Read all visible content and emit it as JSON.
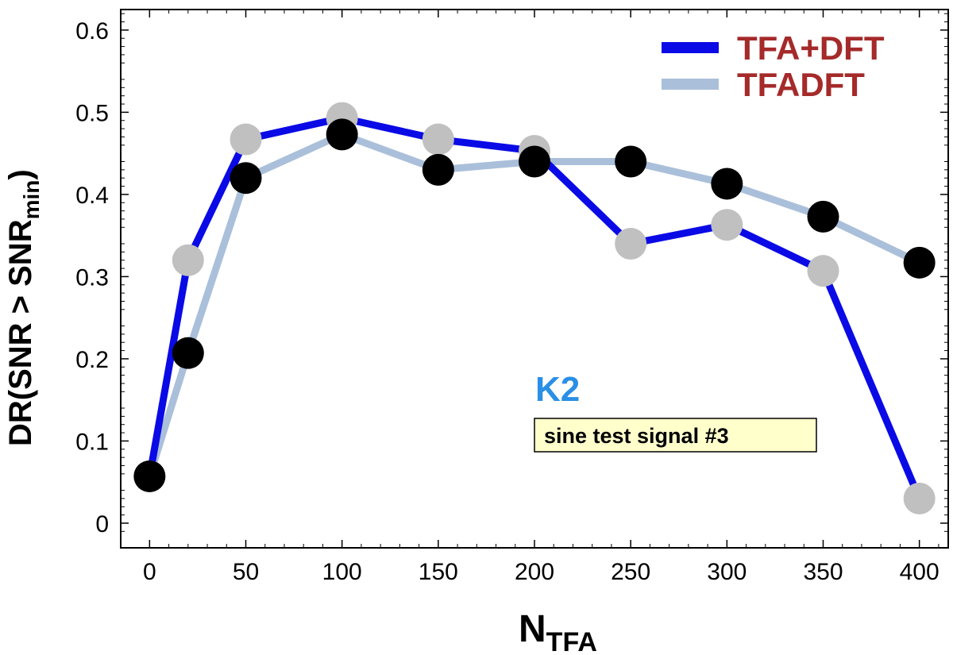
{
  "chart_data": {
    "type": "line",
    "xlabel": {
      "main": "N",
      "sub": "TFA"
    },
    "ylabel": {
      "pre": "DR(SNR > SNR",
      "sub": "min",
      "post": ")"
    },
    "xlim": [
      -15,
      415
    ],
    "ylim": [
      -0.03,
      0.625
    ],
    "xticks": [
      0,
      50,
      100,
      150,
      200,
      250,
      300,
      350,
      400
    ],
    "yticks": [
      0,
      0.1,
      0.2,
      0.3,
      0.4,
      0.5,
      0.6
    ],
    "xtick_labels": [
      "0",
      "50",
      "100",
      "150",
      "200",
      "250",
      "300",
      "350",
      "400"
    ],
    "ytick_labels": [
      "0",
      "0.1",
      "0.2",
      "0.3",
      "0.4",
      "0.5",
      "0.6"
    ],
    "series": [
      {
        "name": "TFA+DFT",
        "line_color": "#0a0ae6",
        "x": [
          0,
          20,
          50,
          100,
          150,
          200,
          250,
          300,
          350,
          400
        ],
        "values": [
          0.057,
          0.32,
          0.467,
          0.493,
          0.467,
          0.453,
          0.34,
          0.363,
          0.307,
          0.03
        ],
        "marker_color": "#c0c0c0"
      },
      {
        "name": "TFADFT",
        "line_color": "#aabfda",
        "x": [
          0,
          20,
          50,
          100,
          150,
          200,
          250,
          300,
          350,
          400
        ],
        "values": [
          0.057,
          0.207,
          0.42,
          0.473,
          0.43,
          0.44,
          0.44,
          0.413,
          0.373,
          0.317
        ],
        "marker_color": "#000000"
      }
    ],
    "legend_placement": "top-right",
    "legend_text_color": "#a52a2a",
    "annotations": {
      "label": "K2",
      "label_color": "#2a8fe6",
      "box_text": "sine test signal #3",
      "box_fill": "#ffffcc"
    }
  }
}
